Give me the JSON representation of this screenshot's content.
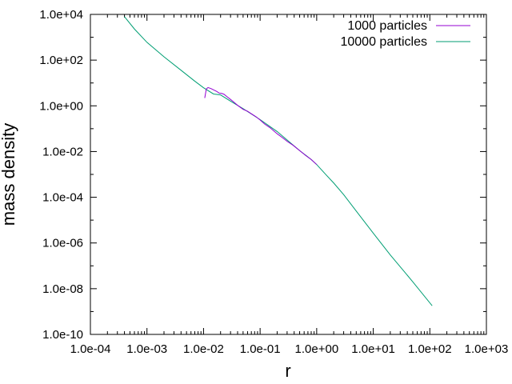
{
  "chart_data": {
    "type": "line",
    "title": "",
    "xlabel": "r",
    "ylabel": "mass density",
    "xscale": "log",
    "yscale": "log",
    "xlim": [
      0.0001,
      1000
    ],
    "ylim": [
      1e-10,
      10000
    ],
    "x_ticks": [
      {
        "value": 0.0001,
        "label": "1.0e-04"
      },
      {
        "value": 0.001,
        "label": "1.0e-03"
      },
      {
        "value": 0.01,
        "label": "1.0e-02"
      },
      {
        "value": 0.1,
        "label": "1.0e-01"
      },
      {
        "value": 1,
        "label": "1.0e+00"
      },
      {
        "value": 10,
        "label": "1.0e+01"
      },
      {
        "value": 100,
        "label": "1.0e+02"
      },
      {
        "value": 1000,
        "label": "1.0e+03"
      }
    ],
    "y_ticks": [
      {
        "value": 1e-10,
        "label": "1.0e-10"
      },
      {
        "value": 1e-08,
        "label": "1.0e-08"
      },
      {
        "value": 1e-06,
        "label": "1.0e-06"
      },
      {
        "value": 0.0001,
        "label": "1.0e-04"
      },
      {
        "value": 0.01,
        "label": "1.0e-02"
      },
      {
        "value": 1,
        "label": "1.0e+00"
      },
      {
        "value": 100,
        "label": "1.0e+02"
      },
      {
        "value": 10000,
        "label": "1.0e+04"
      }
    ],
    "grid": false,
    "legend_position": "top-right",
    "series": [
      {
        "name": "1000 particles",
        "color": "#9400d3",
        "points": [
          [
            0.0105,
            2.2
          ],
          [
            0.0112,
            5.5
          ],
          [
            0.012,
            6.3
          ],
          [
            0.0135,
            5.7
          ],
          [
            0.015,
            5.0
          ],
          [
            0.017,
            4.3
          ],
          [
            0.019,
            3.6
          ],
          [
            0.021,
            3.5
          ],
          [
            0.023,
            3.2
          ],
          [
            0.026,
            2.5
          ],
          [
            0.03,
            1.9
          ],
          [
            0.035,
            1.4
          ],
          [
            0.04,
            1.05
          ],
          [
            0.045,
            0.85
          ],
          [
            0.05,
            0.7
          ],
          [
            0.06,
            0.58
          ],
          [
            0.07,
            0.45
          ],
          [
            0.085,
            0.33
          ],
          [
            0.1,
            0.24
          ],
          [
            0.12,
            0.16
          ],
          [
            0.15,
            0.11
          ],
          [
            0.2,
            0.06
          ],
          [
            0.25,
            0.04
          ],
          [
            0.3,
            0.028
          ],
          [
            0.38,
            0.019
          ],
          [
            0.5,
            0.011
          ],
          [
            0.65,
            0.0065
          ],
          [
            0.8,
            0.0045
          ],
          [
            1.0,
            0.0027
          ]
        ]
      },
      {
        "name": "10000 particles",
        "color": "#009e73",
        "points": [
          [
            0.0004,
            8000
          ],
          [
            0.0006,
            2300
          ],
          [
            0.001,
            600
          ],
          [
            0.002,
            140
          ],
          [
            0.004,
            36
          ],
          [
            0.007,
            12
          ],
          [
            0.01,
            6.2
          ],
          [
            0.015,
            3.3
          ],
          [
            0.02,
            3.0
          ],
          [
            0.03,
            1.6
          ],
          [
            0.05,
            0.75
          ],
          [
            0.1,
            0.25
          ],
          [
            0.2,
            0.075
          ],
          [
            0.3,
            0.032
          ],
          [
            0.5,
            0.011
          ],
          [
            0.8,
            0.0045
          ],
          [
            1.0,
            0.0027
          ],
          [
            1.5,
            0.0009
          ],
          [
            2,
            0.00042
          ],
          [
            3,
            0.00013
          ],
          [
            5,
            2.5e-05
          ],
          [
            10,
            2.7e-06
          ],
          [
            20,
            3e-07
          ],
          [
            50,
            2e-08
          ],
          [
            110,
            1.8e-09
          ]
        ]
      }
    ]
  }
}
